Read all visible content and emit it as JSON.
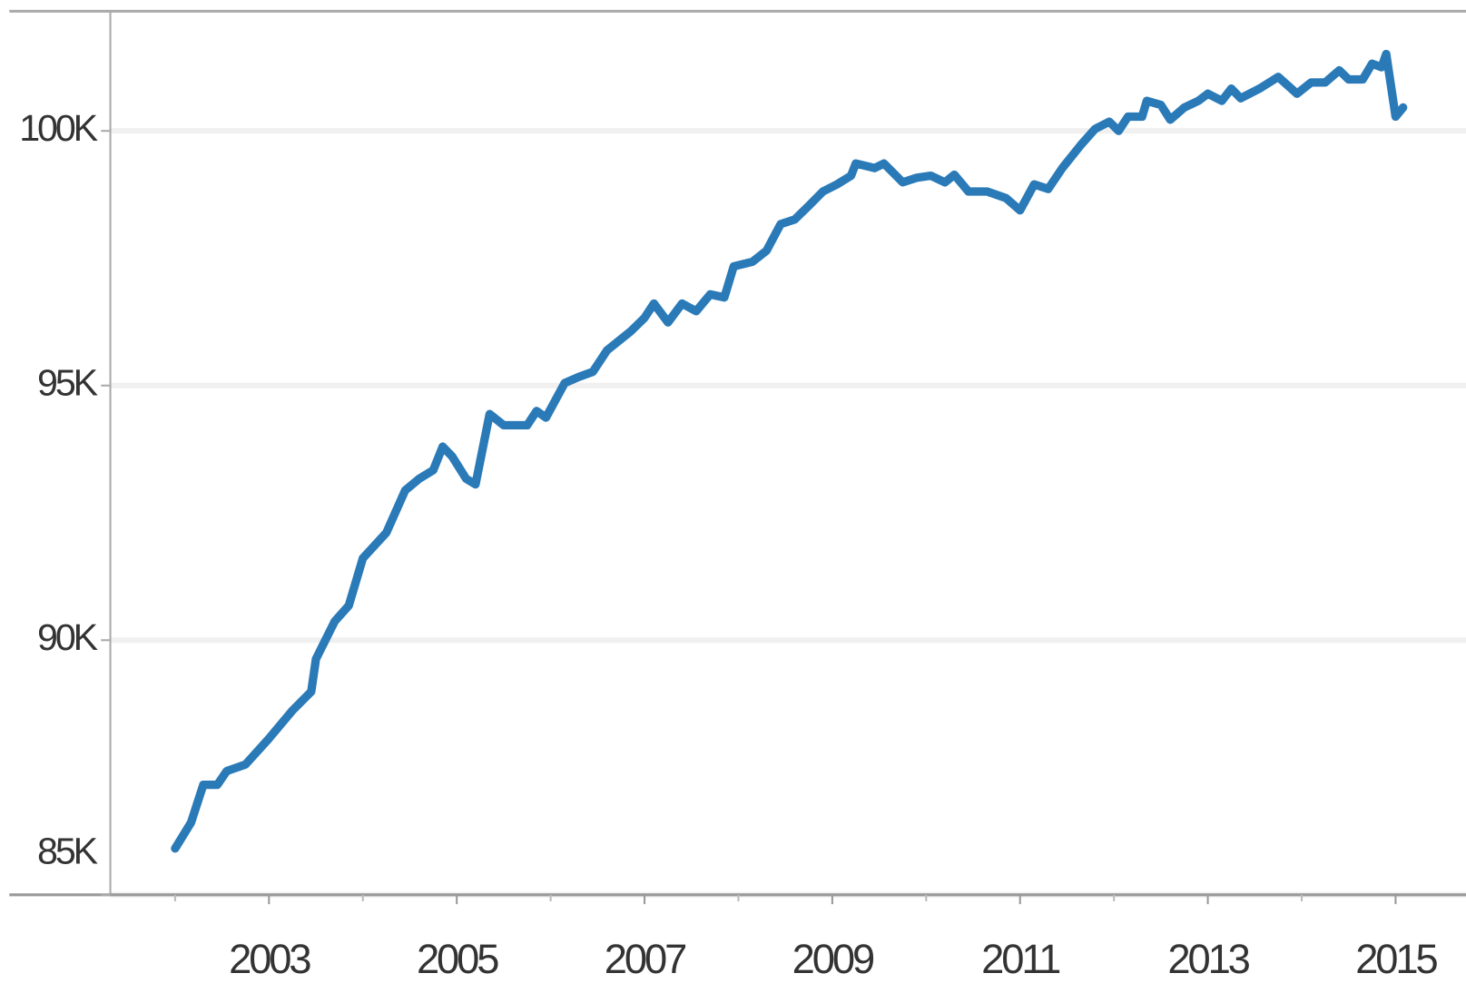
{
  "chart_data": {
    "type": "line",
    "x": [
      2002.0,
      2002.17,
      2002.3,
      2002.45,
      2002.55,
      2002.75,
      2003.0,
      2003.25,
      2003.45,
      2003.5,
      2003.7,
      2003.85,
      2004.0,
      2004.25,
      2004.45,
      2004.6,
      2004.75,
      2004.85,
      2004.95,
      2005.1,
      2005.2,
      2005.35,
      2005.5,
      2005.75,
      2005.85,
      2005.95,
      2006.15,
      2006.3,
      2006.45,
      2006.6,
      2006.85,
      2007.0,
      2007.1,
      2007.25,
      2007.4,
      2007.55,
      2007.7,
      2007.85,
      2007.95,
      2008.15,
      2008.3,
      2008.45,
      2008.6,
      2008.75,
      2008.9,
      2009.05,
      2009.2,
      2009.25,
      2009.45,
      2009.55,
      2009.75,
      2009.9,
      2010.05,
      2010.2,
      2010.3,
      2010.45,
      2010.65,
      2010.85,
      2011.0,
      2011.15,
      2011.3,
      2011.45,
      2011.65,
      2011.8,
      2011.95,
      2012.05,
      2012.15,
      2012.3,
      2012.35,
      2012.5,
      2012.6,
      2012.75,
      2012.9,
      2013.0,
      2013.15,
      2013.25,
      2013.35,
      2013.55,
      2013.75,
      2013.95,
      2014.1,
      2014.25,
      2014.4,
      2014.5,
      2014.65,
      2014.75,
      2014.85,
      2014.9,
      2015.0,
      2015.08
    ],
    "series": [
      {
        "color": "#2a7ab8",
        "values": [
          85910,
          86420,
          87160,
          87160,
          87430,
          87560,
          88070,
          88620,
          88990,
          89630,
          90370,
          90680,
          91610,
          92110,
          92940,
          93170,
          93340,
          93800,
          93610,
          93170,
          93060,
          94440,
          94220,
          94220,
          94500,
          94370,
          95050,
          95170,
          95270,
          95690,
          96060,
          96330,
          96610,
          96240,
          96610,
          96460,
          96790,
          96730,
          97340,
          97430,
          97650,
          98170,
          98260,
          98530,
          98810,
          98950,
          99120,
          99360,
          99270,
          99360,
          98990,
          99080,
          99120,
          98990,
          99140,
          98810,
          98810,
          98680,
          98440,
          98950,
          98860,
          99270,
          99730,
          100040,
          100180,
          100000,
          100280,
          100280,
          100590,
          100510,
          100220,
          100460,
          100590,
          100730,
          100590,
          100830,
          100640,
          100830,
          101060,
          100730,
          100950,
          100950,
          101190,
          101010,
          101010,
          101320,
          101250,
          101510,
          100280,
          100460
        ]
      }
    ],
    "xlim": [
      2001.31,
      2015.75
    ],
    "xticks": [
      2003,
      2005,
      2007,
      2009,
      2011,
      2013,
      2015
    ],
    "minor_xticks": [
      2002,
      2004,
      2006,
      2008,
      2010,
      2012,
      2014
    ],
    "ylim": [
      85000,
      102350
    ],
    "yticks": [
      {
        "value": 85000,
        "label": "85K"
      },
      {
        "value": 90000,
        "label": "90K"
      },
      {
        "value": 95000,
        "label": "95K"
      },
      {
        "value": 100000,
        "label": "100K"
      }
    ],
    "grid": true
  }
}
